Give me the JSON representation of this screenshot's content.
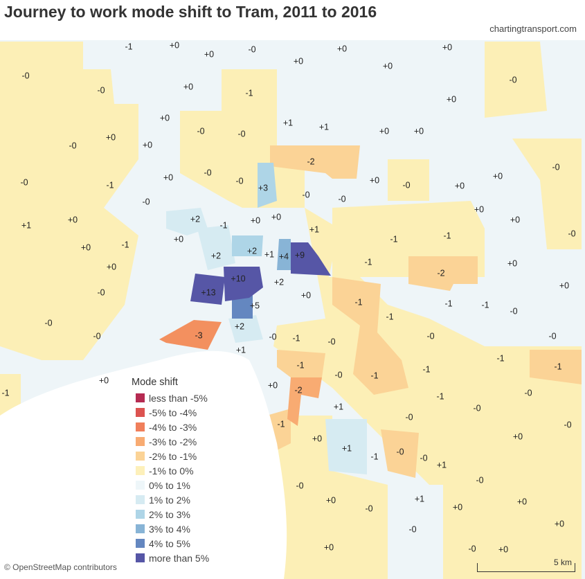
{
  "title": "Journey to work mode shift to Tram, 2011 to 2016",
  "credit": "chartingtransport.com",
  "attribution": "© OpenStreetMap contributors",
  "scale_label": "5 km",
  "legend": {
    "title": "Mode shift",
    "items": [
      {
        "label": "less than -5%",
        "color": "#b52b52"
      },
      {
        "label": "-5% to -4%",
        "color": "#dc5350"
      },
      {
        "label": "-4% to -3%",
        "color": "#f07f5b"
      },
      {
        "label": "-3% to -2%",
        "color": "#f8ab72"
      },
      {
        "label": "-2% to -1%",
        "color": "#fbd396"
      },
      {
        "label": "-1% to 0%",
        "color": "#fdf0ba"
      },
      {
        "label": "0% to 1%",
        "color": "#eef6f9"
      },
      {
        "label": "1% to 2%",
        "color": "#d6ebf2"
      },
      {
        "label": "2% to 3%",
        "color": "#aed5e7"
      },
      {
        "label": "3% to 4%",
        "color": "#88b4d6"
      },
      {
        "label": "4% to 5%",
        "color": "#6487c0"
      },
      {
        "label": "more than 5%",
        "color": "#5656a6"
      }
    ]
  },
  "region_labels": [
    "-1",
    "+0",
    "+0",
    "-0",
    "+0",
    "+0",
    "-0",
    "+0",
    "+0",
    "+0",
    "-0",
    "-1",
    "-0",
    "+0",
    "+0",
    "+1",
    "+1",
    "-0",
    "-0",
    "+0",
    "+0",
    "+0",
    "-0",
    "+0",
    "-2",
    "-0",
    "+3",
    "+0",
    "-0",
    "-0",
    "+0",
    "-0",
    "+0",
    "+0",
    "-0",
    "-1",
    "-0",
    "-0",
    "-0",
    "+2",
    "-1",
    "+0",
    "+0",
    "+1",
    "+1",
    "+0",
    "+0",
    "+0",
    "+0",
    "-0",
    "-1",
    "-1",
    "+0",
    "-1",
    "+2",
    "+2",
    "+1",
    "+4",
    "+9",
    "+0",
    "-1",
    "+0",
    "-2",
    "+0",
    "+10",
    "+2",
    "+13",
    "+0",
    "-0",
    "+5",
    "-1",
    "-1",
    "-1",
    "-0",
    "-1",
    "-0",
    "+2",
    "-3",
    "-0",
    "-1",
    "-0",
    "-0",
    "-0",
    "-0",
    "+1",
    "-1",
    "-0",
    "-1",
    "-1",
    "-1",
    "-1",
    "+0",
    "+0",
    "-2",
    "-1",
    "-0",
    "-1",
    "+1",
    "-0",
    "-0",
    "-1",
    "-0",
    "+0",
    "+1",
    "-0",
    "-1",
    "-0",
    "+0",
    "+1",
    "-0",
    "-0",
    "+0",
    "-0",
    "+1",
    "+0",
    "+0",
    "-0",
    "+0",
    "+0",
    "-0",
    "+0"
  ]
}
